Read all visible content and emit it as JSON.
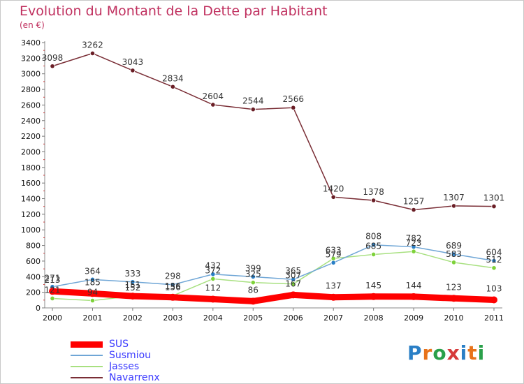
{
  "title": "Evolution du Montant de la Dette par Habitant",
  "subtitle": "(en €)",
  "logo": {
    "text": "Proxiti",
    "letter_colors": [
      "#2a7fc6",
      "#e8731a",
      "#2aa04a",
      "#d63a3a",
      "#2a7fc6",
      "#e8731a",
      "#2aa04a"
    ]
  },
  "chart_data": {
    "type": "line",
    "x": [
      "2000",
      "2001",
      "2002",
      "2003",
      "2004",
      "2005",
      "2006",
      "2007",
      "2008",
      "2009",
      "2010",
      "2011"
    ],
    "ylim": [
      0,
      3400
    ],
    "yticks": [
      0,
      200,
      400,
      600,
      800,
      1000,
      1200,
      1400,
      1600,
      1800,
      2000,
      2200,
      2400,
      2600,
      2800,
      3000,
      3200,
      3400
    ],
    "grid": false,
    "legend_position": "bottom-left",
    "series": [
      {
        "name": "Navarrenx",
        "color": "#7a2e36",
        "marker": "#6a1e26",
        "width": 1.5,
        "values": [
          3098,
          3262,
          3043,
          2834,
          2604,
          2544,
          2566,
          1420,
          1378,
          1257,
          1307,
          1301
        ],
        "labels": [
          "3098",
          "3262",
          "3043",
          "2834",
          "2604",
          "2544",
          "2566",
          "1420",
          "1378",
          "1257",
          "1307",
          "1301"
        ]
      },
      {
        "name": "Jasses",
        "color": "#a8e080",
        "marker": "#7ed23a",
        "width": 1.5,
        "values": [
          121,
          94,
          152,
          156,
          372,
          325,
          307,
          633,
          685,
          723,
          583,
          512
        ],
        "labels": [
          "121",
          "94",
          "152",
          "156",
          "372",
          "325",
          "307",
          "633",
          "685",
          "723",
          "583",
          "512"
        ]
      },
      {
        "name": "Susmiou",
        "color": "#6fa6d6",
        "marker": "#2a7fc6",
        "width": 1.5,
        "values": [
          271,
          364,
          333,
          298,
          432,
          399,
          365,
          579,
          808,
          782,
          689,
          604
        ],
        "labels": [
          "271",
          "364",
          "333",
          "298",
          "432",
          "399",
          "365",
          "579",
          "808",
          "782",
          "689",
          "604"
        ]
      },
      {
        "name": "SUS",
        "color": "#ff0000",
        "marker": "#ff0000",
        "width": 9,
        "values": [
          213,
          185,
          151,
          136,
          112,
          86,
          167,
          137,
          145,
          144,
          123,
          103
        ],
        "labels": [
          "213",
          "185",
          "151",
          "136",
          "112",
          "86",
          "167",
          "137",
          "145",
          "144",
          "123",
          "103"
        ]
      }
    ]
  },
  "legend": [
    {
      "name": "SUS",
      "color": "#ff0000",
      "thickness": 9,
      "text_color": "#3b3bff"
    },
    {
      "name": "Susmiou",
      "color": "#6fa6d6",
      "thickness": 2,
      "text_color": "#3b3bff"
    },
    {
      "name": "Jasses",
      "color": "#a8e080",
      "thickness": 2,
      "text_color": "#3b3bff"
    },
    {
      "name": "Navarrenx",
      "color": "#7a2e36",
      "thickness": 2,
      "text_color": "#3b3bff"
    }
  ]
}
